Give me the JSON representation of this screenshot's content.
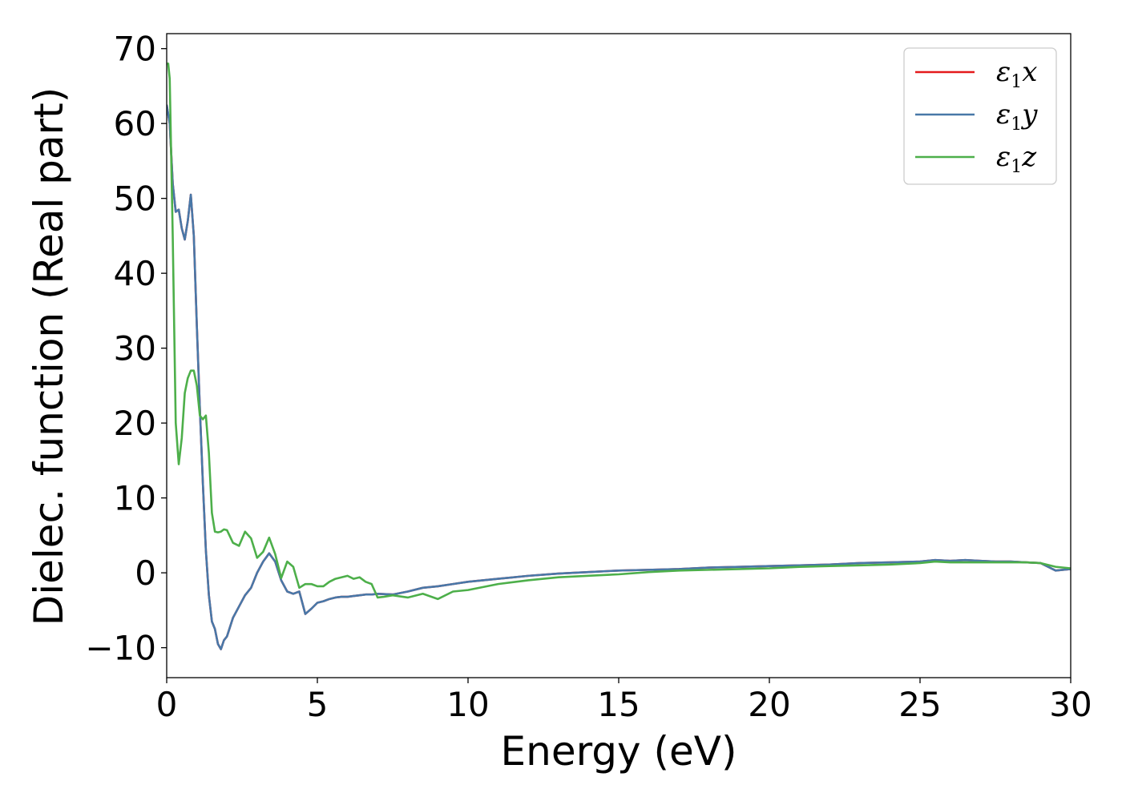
{
  "chart_data": {
    "type": "line",
    "title": "",
    "xlabel": "Energy (eV)",
    "ylabel": "Dielec. function (Real part)",
    "xlim": [
      0,
      30
    ],
    "ylim": [
      -14,
      72
    ],
    "xticks": [
      0,
      5,
      10,
      15,
      20,
      25,
      30
    ],
    "yticks": [
      -10,
      0,
      10,
      20,
      30,
      40,
      50,
      60,
      70
    ],
    "xtick_labels": [
      "0",
      "5",
      "10",
      "15",
      "20",
      "25",
      "30"
    ],
    "ytick_labels": [
      "−10",
      "0",
      "10",
      "20",
      "30",
      "40",
      "50",
      "60",
      "70"
    ],
    "grid": false,
    "legend_position": "top-right",
    "series": [
      {
        "name": "ε₁x",
        "legend_base": "ε",
        "legend_sub": "1",
        "legend_var": "x",
        "color": "#e41a1c",
        "x": [
          0,
          0.1,
          0.2,
          0.3,
          0.4,
          0.5,
          0.6,
          0.7,
          0.8,
          0.9,
          1.0,
          1.1,
          1.2,
          1.3,
          1.4,
          1.5,
          1.6,
          1.7,
          1.8,
          1.9,
          2.0,
          2.2,
          2.4,
          2.6,
          2.8,
          3.0,
          3.2,
          3.4,
          3.6,
          3.8,
          4.0,
          4.2,
          4.4,
          4.6,
          4.8,
          5.0,
          5.2,
          5.4,
          5.6,
          5.8,
          6.0,
          6.2,
          6.4,
          6.6,
          6.8,
          7.0,
          7.5,
          8.0,
          8.5,
          9.0,
          9.5,
          10,
          11,
          12,
          13,
          14,
          15,
          16,
          17,
          18,
          19,
          20,
          21,
          22,
          23,
          24,
          25,
          25.5,
          26,
          26.5,
          27,
          27.5,
          28,
          28.5,
          29,
          29.5,
          30
        ],
        "y": [
          62.5,
          60,
          52,
          48.2,
          48.5,
          46,
          44.5,
          47,
          50.5,
          45,
          33,
          22,
          12,
          3,
          -3,
          -6.5,
          -7.5,
          -9.5,
          -10.2,
          -9,
          -8.5,
          -6,
          -4.5,
          -3,
          -2,
          0,
          1.5,
          2.6,
          1.5,
          -1,
          -2.5,
          -2.8,
          -2.5,
          -5.5,
          -4.8,
          -4,
          -3.8,
          -3.5,
          -3.3,
          -3.2,
          -3.2,
          -3.1,
          -3,
          -2.9,
          -2.9,
          -2.8,
          -2.9,
          -2.5,
          -2,
          -1.8,
          -1.5,
          -1.2,
          -0.8,
          -0.4,
          -0.1,
          0.1,
          0.3,
          0.4,
          0.5,
          0.7,
          0.8,
          0.9,
          1.0,
          1.1,
          1.3,
          1.4,
          1.5,
          1.7,
          1.6,
          1.7,
          1.6,
          1.5,
          1.5,
          1.4,
          1.3,
          0.3,
          0.5
        ]
      },
      {
        "name": "ε₁y",
        "legend_base": "ε",
        "legend_sub": "1",
        "legend_var": "y",
        "color": "#4878a8",
        "x": [
          0,
          0.1,
          0.2,
          0.3,
          0.4,
          0.5,
          0.6,
          0.7,
          0.8,
          0.9,
          1.0,
          1.1,
          1.2,
          1.3,
          1.4,
          1.5,
          1.6,
          1.7,
          1.8,
          1.9,
          2.0,
          2.2,
          2.4,
          2.6,
          2.8,
          3.0,
          3.2,
          3.4,
          3.6,
          3.8,
          4.0,
          4.2,
          4.4,
          4.6,
          4.8,
          5.0,
          5.2,
          5.4,
          5.6,
          5.8,
          6.0,
          6.2,
          6.4,
          6.6,
          6.8,
          7.0,
          7.5,
          8.0,
          8.5,
          9.0,
          9.5,
          10,
          11,
          12,
          13,
          14,
          15,
          16,
          17,
          18,
          19,
          20,
          21,
          22,
          23,
          24,
          25,
          25.5,
          26,
          26.5,
          27,
          27.5,
          28,
          28.5,
          29,
          29.5,
          30
        ],
        "y": [
          62.5,
          60,
          52,
          48.2,
          48.5,
          46,
          44.5,
          47,
          50.5,
          45,
          33,
          22,
          12,
          3,
          -3,
          -6.5,
          -7.5,
          -9.5,
          -10.2,
          -9,
          -8.5,
          -6,
          -4.5,
          -3,
          -2,
          0,
          1.5,
          2.6,
          1.5,
          -1,
          -2.5,
          -2.8,
          -2.5,
          -5.5,
          -4.8,
          -4,
          -3.8,
          -3.5,
          -3.3,
          -3.2,
          -3.2,
          -3.1,
          -3,
          -2.9,
          -2.9,
          -2.8,
          -2.9,
          -2.5,
          -2,
          -1.8,
          -1.5,
          -1.2,
          -0.8,
          -0.4,
          -0.1,
          0.1,
          0.3,
          0.4,
          0.5,
          0.7,
          0.8,
          0.9,
          1.0,
          1.1,
          1.3,
          1.4,
          1.5,
          1.7,
          1.6,
          1.7,
          1.6,
          1.5,
          1.5,
          1.4,
          1.3,
          0.3,
          0.5
        ]
      },
      {
        "name": "ε₁z",
        "legend_base": "ε",
        "legend_sub": "1",
        "legend_var": "z",
        "color": "#4daf4a",
        "x": [
          0,
          0.05,
          0.1,
          0.2,
          0.3,
          0.4,
          0.5,
          0.6,
          0.7,
          0.8,
          0.9,
          1.0,
          1.1,
          1.2,
          1.3,
          1.4,
          1.5,
          1.6,
          1.7,
          1.8,
          1.9,
          2.0,
          2.2,
          2.4,
          2.6,
          2.8,
          3.0,
          3.2,
          3.4,
          3.6,
          3.8,
          4.0,
          4.2,
          4.4,
          4.6,
          4.8,
          5.0,
          5.2,
          5.4,
          5.6,
          5.8,
          6.0,
          6.2,
          6.4,
          6.6,
          6.8,
          7.0,
          7.2,
          7.5,
          8.0,
          8.5,
          9.0,
          9.5,
          10,
          11,
          12,
          13,
          14,
          15,
          16,
          17,
          18,
          19,
          20,
          21,
          22,
          23,
          24,
          25,
          25.5,
          26,
          26.5,
          27,
          27.5,
          28,
          28.5,
          29,
          29.5,
          30
        ],
        "y": [
          68,
          68,
          66,
          45,
          20,
          14.5,
          18,
          24,
          26,
          27,
          27,
          25,
          21,
          20.5,
          21,
          16,
          8,
          5.5,
          5.4,
          5.5,
          5.8,
          5.7,
          4,
          3.6,
          5.5,
          4.6,
          2,
          2.8,
          4.7,
          2.5,
          -0.7,
          1.5,
          0.8,
          -2,
          -1.5,
          -1.5,
          -1.8,
          -1.8,
          -1.2,
          -0.8,
          -0.6,
          -0.4,
          -0.8,
          -0.6,
          -1.2,
          -1.5,
          -3.3,
          -3.2,
          -3,
          -3.3,
          -2.8,
          -3.5,
          -2.5,
          -2.3,
          -1.5,
          -1,
          -0.6,
          -0.4,
          -0.2,
          0.1,
          0.3,
          0.4,
          0.5,
          0.6,
          0.8,
          0.9,
          1.0,
          1.1,
          1.3,
          1.5,
          1.4,
          1.4,
          1.4,
          1.4,
          1.4,
          1.4,
          1.3,
          0.8,
          0.6
        ]
      }
    ]
  }
}
